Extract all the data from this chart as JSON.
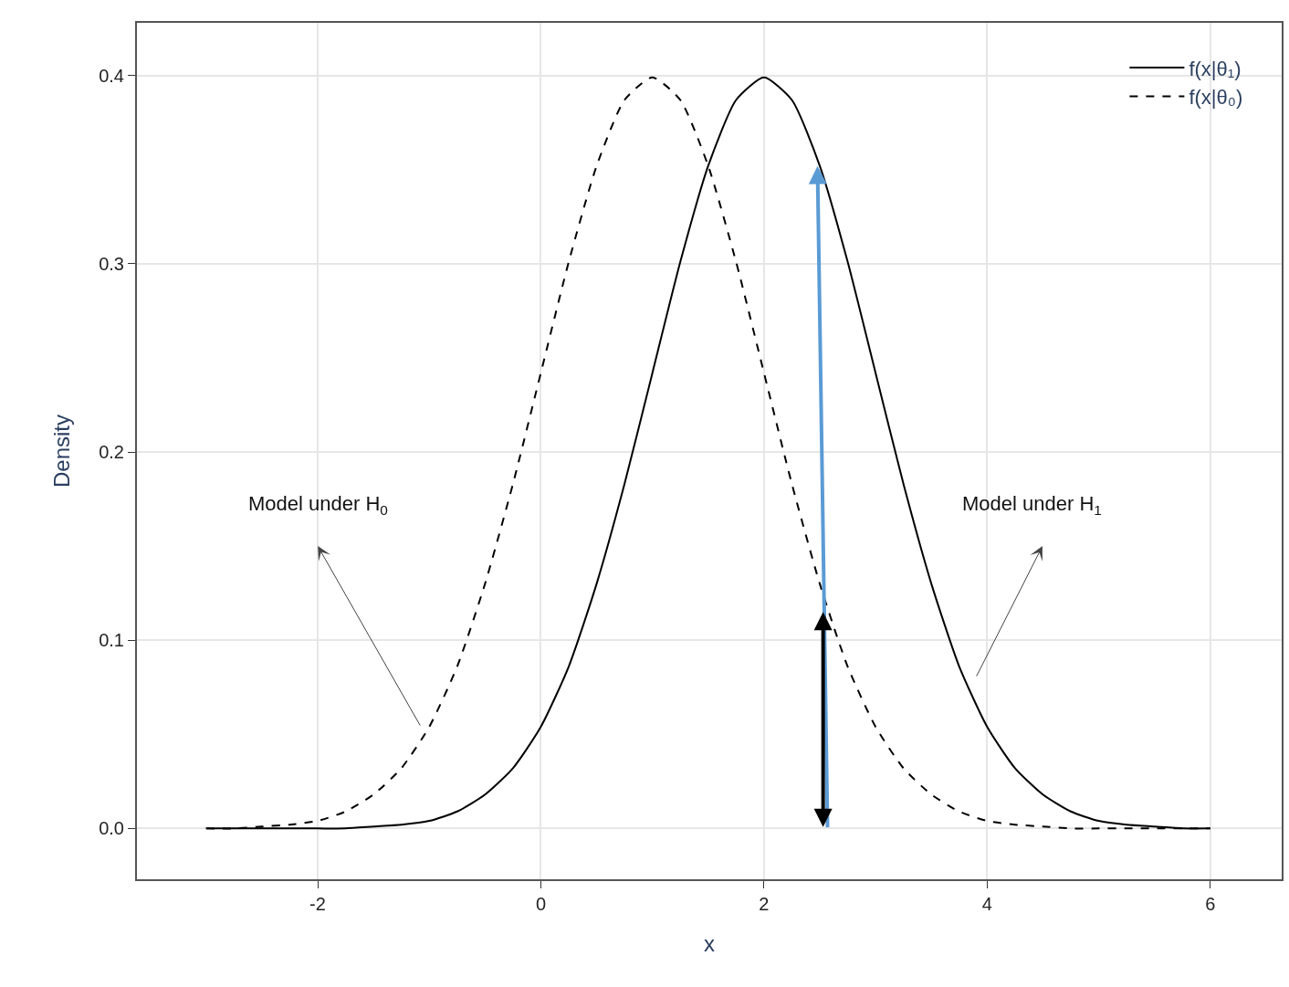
{
  "chart_data": {
    "type": "line",
    "xlabel": "x",
    "ylabel": "Density",
    "x": [
      -3,
      -2.75,
      -2.5,
      -2.25,
      -2,
      -1.75,
      -1.5,
      -1.25,
      -1,
      -0.75,
      -0.5,
      -0.25,
      0,
      0.25,
      0.5,
      0.75,
      1,
      1.25,
      1.5,
      1.75,
      2,
      2.25,
      2.5,
      2.75,
      3,
      3.25,
      3.5,
      3.75,
      4,
      4.25,
      4.5,
      4.75,
      5,
      5.25,
      5.5,
      5.75,
      6
    ],
    "series": [
      {
        "name": "f(x|θ₁)",
        "color": "#000000",
        "line_style": "solid",
        "values": [
          0,
          0,
          0,
          0,
          0,
          0,
          0.001,
          0.002,
          0.004,
          0.009,
          0.018,
          0.032,
          0.054,
          0.086,
          0.13,
          0.183,
          0.242,
          0.301,
          0.352,
          0.387,
          0.399,
          0.387,
          0.352,
          0.301,
          0.242,
          0.183,
          0.13,
          0.086,
          0.054,
          0.032,
          0.018,
          0.009,
          0.004,
          0.002,
          0.001,
          0,
          0
        ]
      },
      {
        "name": "f(x|θ₀)",
        "color": "#000000",
        "line_style": "dashed",
        "values": [
          0,
          0,
          0.001,
          0.002,
          0.004,
          0.009,
          0.018,
          0.032,
          0.054,
          0.086,
          0.13,
          0.183,
          0.242,
          0.301,
          0.352,
          0.387,
          0.399,
          0.387,
          0.352,
          0.301,
          0.242,
          0.183,
          0.13,
          0.086,
          0.054,
          0.032,
          0.018,
          0.009,
          0.004,
          0.002,
          0.001,
          0,
          0,
          0,
          0,
          0,
          0
        ]
      }
    ],
    "annotations": [
      "Model under H$_{0}$",
      "Model under H$_{1}$"
    ],
    "xlim": [
      -3.62,
      6.64
    ],
    "ylim": [
      -0.027,
      0.428
    ],
    "xticks": [
      -2,
      0,
      2,
      4,
      6
    ],
    "yticks": [
      {
        "value": 0,
        "label": "0.0"
      },
      {
        "value": 0.1,
        "label": "0.1"
      },
      {
        "value": 0.2,
        "label": "0.2"
      },
      {
        "value": 0.3,
        "label": "0.3"
      },
      {
        "value": 0.4,
        "label": "0.4"
      }
    ],
    "grid": true,
    "legend": "top right"
  }
}
